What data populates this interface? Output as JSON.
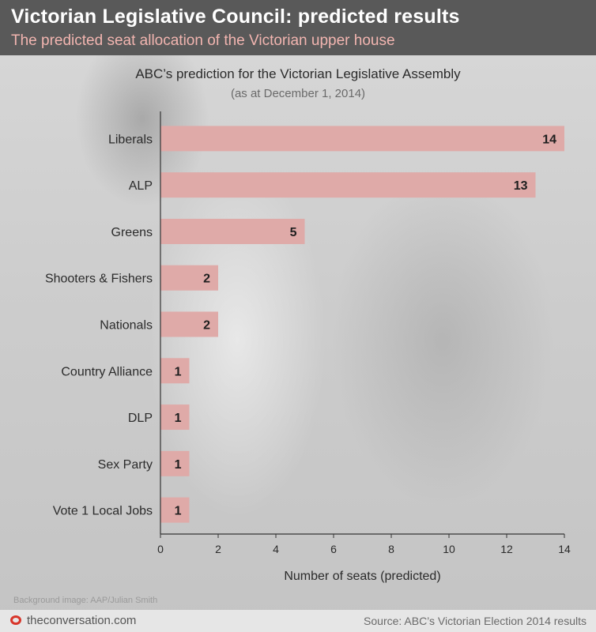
{
  "header": {
    "title": "Victorian Legislative Council: predicted results",
    "subtitle": "The predicted seat allocation of the Victorian upper house"
  },
  "chart_data": {
    "type": "bar",
    "orientation": "horizontal",
    "title": "ABC’s prediction for the Victorian Legislative Assembly",
    "subtitle": "(as at December 1, 2014)",
    "categories": [
      "Liberals",
      "ALP",
      "Greens",
      "Shooters & Fishers",
      "Nationals",
      "Country Alliance",
      "DLP",
      "Sex Party",
      "Vote 1 Local Jobs"
    ],
    "values": [
      14,
      13,
      5,
      2,
      2,
      1,
      1,
      1,
      1
    ],
    "xlabel": "Number of seats (predicted)",
    "ylabel": "",
    "xlim": [
      0,
      14
    ],
    "xticks": [
      0,
      2,
      4,
      6,
      8,
      10,
      12,
      14
    ],
    "grid": false,
    "data_labels": true,
    "colors": {
      "bar": "#dfaaa8",
      "axis": "#333333"
    }
  },
  "credits": {
    "background_image": "Background image: AAP/Julian Smith"
  },
  "footer": {
    "site": "theconversation.com",
    "source": "Source: ABC’s Victorian Election 2014 results",
    "logo_icon": "conversation-logo-icon",
    "brand_color": "#d8352a"
  }
}
